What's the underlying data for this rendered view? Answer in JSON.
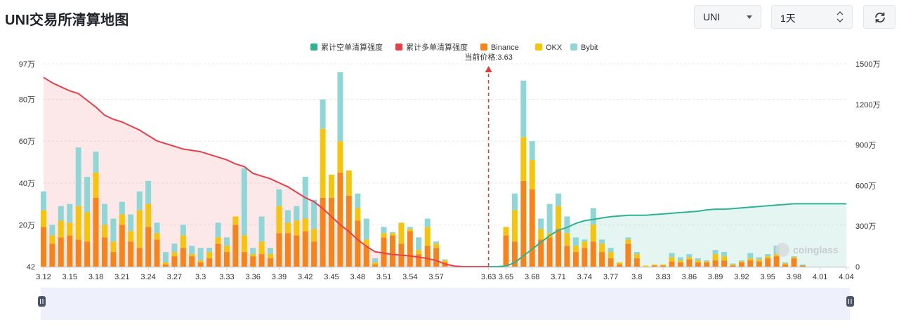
{
  "page": {
    "title": "UNI交易所清算地图"
  },
  "controls": {
    "symbol_value": "UNI",
    "range_value": "1天",
    "refresh_icon": "refresh-icon"
  },
  "watermark": "coinglass",
  "chart_data": {
    "type": "bar",
    "title": "",
    "current_price_label": "当前价格:3.63",
    "current_price": 3.63,
    "colors": {
      "binance": "#f7841b",
      "okx": "#f6c40b",
      "bybit": "#8fd6d6",
      "short_cum": "#2db391",
      "long_cum": "#e74049"
    },
    "legend": [
      {
        "name": "累计空单清算强度",
        "color": "#2db391"
      },
      {
        "name": "累计多单清算强度",
        "color": "#e74049"
      },
      {
        "name": "Binance",
        "color": "#f7841b"
      },
      {
        "name": "OKX",
        "color": "#f6c40b"
      },
      {
        "name": "Bybit",
        "color": "#8fd6d6"
      }
    ],
    "legend_position": "top-center",
    "xlim": [
      3.12,
      4.04
    ],
    "x_ticks": [
      "3.12",
      "3.15",
      "3.18",
      "3.21",
      "3.24",
      "3.27",
      "3.3",
      "3.33",
      "3.36",
      "3.39",
      "3.42",
      "3.45",
      "3.48",
      "3.51",
      "3.54",
      "3.57",
      "3.63",
      "3.65",
      "3.68",
      "3.71",
      "3.74",
      "3.77",
      "3.8",
      "3.83",
      "3.86",
      "3.89",
      "3.92",
      "3.95",
      "3.98",
      "4.01",
      "4.04"
    ],
    "y_left_ticks": [
      "42",
      "20万",
      "40万",
      "60万",
      "80万",
      "97万"
    ],
    "y_left_values": [
      42,
      200000,
      400000,
      600000,
      800000,
      970000
    ],
    "ylim_left": [
      0,
      970000
    ],
    "y_right_ticks": [
      "0",
      "300万",
      "600万",
      "900万",
      "1200万",
      "1500万"
    ],
    "ylim_right": [
      0,
      15000000
    ],
    "grid": true,
    "bars": {
      "x": [
        3.12,
        3.13,
        3.14,
        3.15,
        3.16,
        3.17,
        3.18,
        3.19,
        3.2,
        3.21,
        3.22,
        3.23,
        3.24,
        3.25,
        3.26,
        3.27,
        3.28,
        3.29,
        3.3,
        3.31,
        3.32,
        3.33,
        3.34,
        3.35,
        3.36,
        3.37,
        3.38,
        3.39,
        3.4,
        3.41,
        3.42,
        3.43,
        3.44,
        3.45,
        3.46,
        3.47,
        3.48,
        3.49,
        3.5,
        3.51,
        3.52,
        3.53,
        3.54,
        3.55,
        3.56,
        3.57,
        3.58,
        3.65,
        3.66,
        3.67,
        3.68,
        3.69,
        3.7,
        3.71,
        3.72,
        3.73,
        3.74,
        3.75,
        3.76,
        3.77,
        3.78,
        3.79,
        3.8,
        3.81,
        3.82,
        3.83,
        3.84,
        3.85,
        3.86,
        3.87,
        3.88,
        3.89,
        3.9,
        3.91,
        3.92,
        3.93,
        3.94,
        3.95,
        3.96,
        3.97,
        3.98,
        3.99,
        4.0,
        4.01,
        4.02,
        4.03
      ],
      "binance": [
        190000,
        110000,
        140000,
        150000,
        130000,
        120000,
        330000,
        140000,
        70000,
        200000,
        120000,
        90000,
        190000,
        130000,
        10000,
        50000,
        90000,
        50000,
        20000,
        40000,
        110000,
        70000,
        200000,
        70000,
        50000,
        60000,
        40000,
        160000,
        160000,
        150000,
        170000,
        120000,
        330000,
        330000,
        450000,
        340000,
        220000,
        100000,
        10000,
        140000,
        150000,
        110000,
        170000,
        60000,
        100000,
        90000,
        20000,
        150000,
        120000,
        410000,
        370000,
        130000,
        140000,
        180000,
        100000,
        70000,
        90000,
        120000,
        70000,
        40000,
        10000,
        110000,
        40000,
        0,
        5000,
        5000,
        25000,
        20000,
        35000,
        20000,
        20000,
        30000,
        30000,
        5000,
        20000,
        30000,
        25000,
        40000,
        50000,
        10000,
        40000,
        5000,
        0,
        0,
        0,
        0
      ],
      "okx": [
        80000,
        40000,
        80000,
        60000,
        160000,
        140000,
        120000,
        60000,
        50000,
        50000,
        50000,
        180000,
        110000,
        30000,
        10000,
        20000,
        60000,
        10000,
        10000,
        30000,
        30000,
        30000,
        40000,
        80000,
        10000,
        60000,
        20000,
        130000,
        50000,
        70000,
        60000,
        60000,
        330000,
        110000,
        150000,
        120000,
        60000,
        30000,
        10000,
        20000,
        10000,
        100000,
        10000,
        20000,
        90000,
        20000,
        10000,
        40000,
        150000,
        210000,
        140000,
        50000,
        20000,
        110000,
        60000,
        30000,
        30000,
        80000,
        40000,
        30000,
        10000,
        20000,
        20000,
        5000,
        5000,
        5000,
        20000,
        10000,
        10000,
        10000,
        5000,
        30000,
        20000,
        5000,
        5000,
        10000,
        10000,
        10000,
        10000,
        5000,
        5000,
        0,
        0,
        0,
        0,
        0
      ],
      "bybit": [
        90000,
        50000,
        70000,
        90000,
        280000,
        170000,
        100000,
        100000,
        110000,
        60000,
        80000,
        90000,
        110000,
        50000,
        50000,
        40000,
        50000,
        40000,
        60000,
        20000,
        70000,
        40000,
        0,
        320000,
        30000,
        120000,
        30000,
        80000,
        60000,
        70000,
        200000,
        140000,
        140000,
        0,
        330000,
        0,
        70000,
        100000,
        20000,
        30000,
        5000,
        0,
        10000,
        60000,
        40000,
        10000,
        5000,
        0,
        80000,
        270000,
        90000,
        50000,
        140000,
        60000,
        80000,
        40000,
        10000,
        80000,
        20000,
        20000,
        0,
        10000,
        10000,
        0,
        0,
        0,
        20000,
        15000,
        15000,
        10000,
        5000,
        20000,
        20000,
        5000,
        5000,
        25000,
        10000,
        10000,
        40000,
        5000,
        5000,
        5000,
        0,
        0,
        0,
        0
      ]
    },
    "long_cumulative": {
      "x": [
        3.12,
        3.13,
        3.14,
        3.15,
        3.16,
        3.17,
        3.18,
        3.19,
        3.2,
        3.21,
        3.22,
        3.23,
        3.24,
        3.25,
        3.26,
        3.27,
        3.28,
        3.29,
        3.3,
        3.31,
        3.32,
        3.33,
        3.34,
        3.35,
        3.36,
        3.37,
        3.38,
        3.39,
        3.4,
        3.41,
        3.42,
        3.43,
        3.44,
        3.45,
        3.46,
        3.47,
        3.48,
        3.49,
        3.5,
        3.51,
        3.52,
        3.53,
        3.54,
        3.55,
        3.56,
        3.57,
        3.58,
        3.59,
        3.6,
        3.61,
        3.62,
        3.63
      ],
      "y": [
        14000000,
        13600000,
        13300000,
        13000000,
        12800000,
        12300000,
        11800000,
        11200000,
        10900000,
        10700000,
        10400000,
        10100000,
        9700000,
        9300000,
        9100000,
        8900000,
        8700000,
        8600000,
        8500000,
        8300000,
        8100000,
        7900000,
        7600000,
        7400000,
        6900000,
        6700000,
        6500000,
        6200000,
        5900000,
        5500000,
        5100000,
        4800000,
        4300000,
        3700000,
        3100000,
        2600000,
        2000000,
        1500000,
        1100000,
        1000000,
        900000,
        850000,
        800000,
        700000,
        600000,
        450000,
        200000,
        50000,
        0,
        0,
        0,
        0
      ]
    },
    "short_cumulative": {
      "x": [
        3.63,
        3.64,
        3.65,
        3.66,
        3.67,
        3.68,
        3.69,
        3.7,
        3.71,
        3.72,
        3.73,
        3.74,
        3.75,
        3.76,
        3.77,
        3.78,
        3.79,
        3.8,
        3.81,
        3.82,
        3.83,
        3.84,
        3.85,
        3.86,
        3.87,
        3.88,
        3.89,
        3.9,
        3.91,
        3.92,
        3.93,
        3.94,
        3.95,
        3.96,
        3.97,
        3.98,
        3.99,
        4.0,
        4.01,
        4.02,
        4.03,
        4.04
      ],
      "y": [
        0,
        0,
        50000,
        300000,
        800000,
        1300000,
        1800000,
        2300000,
        2700000,
        2900000,
        3200000,
        3400000,
        3500000,
        3600000,
        3700000,
        3750000,
        3800000,
        3800000,
        3800000,
        3850000,
        3900000,
        3950000,
        4000000,
        4050000,
        4100000,
        4200000,
        4250000,
        4250000,
        4300000,
        4350000,
        4400000,
        4450000,
        4500000,
        4550000,
        4600000,
        4650000,
        4650000,
        4650000,
        4650000,
        4650000,
        4650000,
        4650000
      ]
    }
  }
}
